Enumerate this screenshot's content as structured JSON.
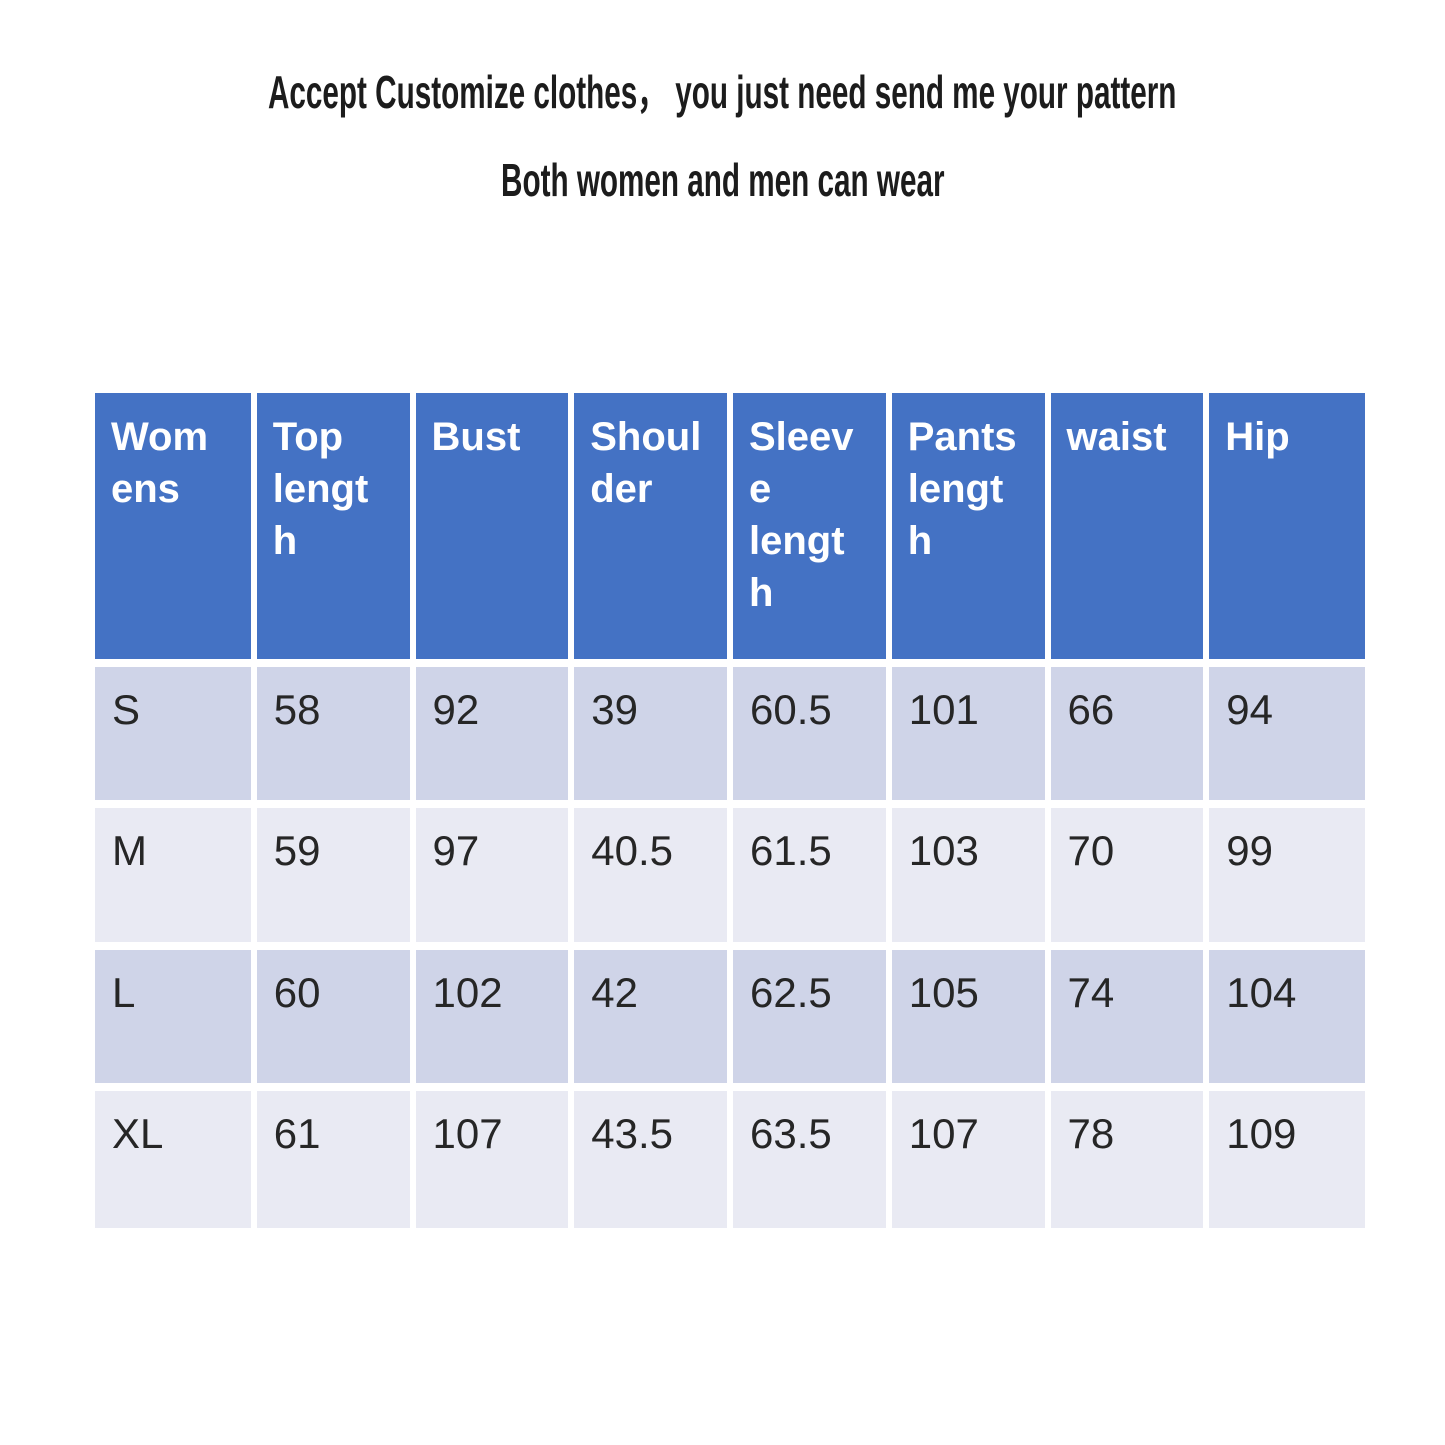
{
  "title": {
    "line1": "Accept Customize clothes，  you just need send me your pattern",
    "line2": "Both women and men can wear"
  },
  "colors": {
    "header_bg": "#4472c4",
    "header_text": "#ffffff",
    "band_dark": "#cfd4e8",
    "band_light": "#e9eaf3",
    "body_text": "#262626",
    "title_text": "#1c1c1c",
    "gridline": "#ffffff"
  },
  "table": {
    "headers": [
      {
        "label": "Womens",
        "display": "Wom\nens"
      },
      {
        "label": "Top length",
        "display": "Top\nlengt\nh"
      },
      {
        "label": "Bust",
        "display": "Bust"
      },
      {
        "label": "Shoulder",
        "display": "Shoul\nder"
      },
      {
        "label": "Sleeve length",
        "display": "Sleeve\nlengt\nh"
      },
      {
        "label": "Pants length",
        "display": "Pants\nlengt\nh"
      },
      {
        "label": "waist",
        "display": "waist"
      },
      {
        "label": "Hip",
        "display": "Hip"
      }
    ],
    "rows": [
      {
        "cells": [
          "S",
          "58",
          "92",
          "39",
          "60.5",
          "101",
          "66",
          "94"
        ]
      },
      {
        "cells": [
          "M",
          "59",
          "97",
          "40.5",
          "61.5",
          "103",
          "70",
          "99"
        ]
      },
      {
        "cells": [
          "L",
          "60",
          "102",
          "42",
          "62.5",
          "105",
          "74",
          "104"
        ]
      },
      {
        "cells": [
          "XL",
          "61",
          "107",
          "43.5",
          "63.5",
          "107",
          "78",
          "109"
        ]
      }
    ]
  },
  "chart_data": {
    "type": "table",
    "title": "Accept Customize clothes，you just need send me your pattern — Both women and men can wear",
    "columns": [
      "Womens",
      "Top length",
      "Bust",
      "Shoulder",
      "Sleeve length",
      "Pants length",
      "waist",
      "Hip"
    ],
    "rows": [
      [
        "S",
        58,
        92,
        39,
        60.5,
        101,
        66,
        94
      ],
      [
        "M",
        59,
        97,
        40.5,
        61.5,
        103,
        70,
        99
      ],
      [
        "L",
        60,
        102,
        42,
        62.5,
        105,
        74,
        104
      ],
      [
        "XL",
        61,
        107,
        43.5,
        63.5,
        107,
        78,
        109
      ]
    ],
    "layout": {
      "header_style": "solid blue band, white bold text, top-aligned",
      "banding": "alternating dark/light lavender rows",
      "grid": "white separators between all cells"
    }
  }
}
